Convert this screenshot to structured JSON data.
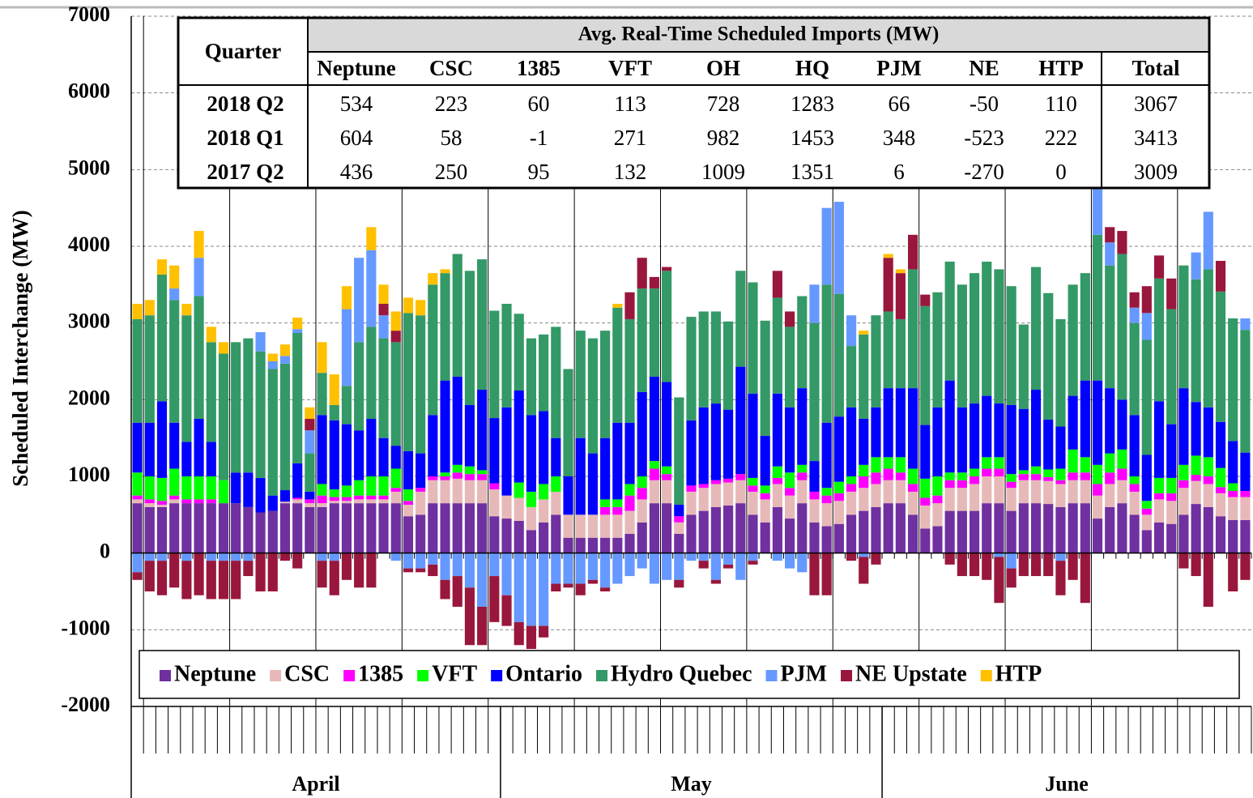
{
  "chart_data": {
    "type": "stacked-bar",
    "y_label": "Scheduled Interchange (MW)",
    "ylim": [
      -2000,
      7000
    ],
    "yticks": [
      -2000,
      -1000,
      0,
      1000,
      2000,
      3000,
      4000,
      5000,
      6000,
      7000
    ],
    "grid": true,
    "legend": "bottom",
    "categories": [
      "April",
      "April",
      "April",
      "April",
      "April",
      "April",
      "April",
      "April",
      "April",
      "April",
      "April",
      "April",
      "April",
      "April",
      "April",
      "April",
      "April",
      "April",
      "April",
      "April",
      "April",
      "April",
      "April",
      "April",
      "April",
      "April",
      "April",
      "April",
      "April",
      "April",
      "May",
      "May",
      "May",
      "May",
      "May",
      "May",
      "May",
      "May",
      "May",
      "May",
      "May",
      "May",
      "May",
      "May",
      "May",
      "May",
      "May",
      "May",
      "May",
      "May",
      "May",
      "May",
      "May",
      "May",
      "May",
      "May",
      "May",
      "May",
      "May",
      "May",
      "May",
      "June",
      "June",
      "June",
      "June",
      "June",
      "June",
      "June",
      "June",
      "June",
      "June",
      "June",
      "June",
      "June",
      "June",
      "June",
      "June",
      "June",
      "June",
      "June",
      "June",
      "June",
      "June",
      "June",
      "June",
      "June",
      "June",
      "June",
      "June",
      "June",
      "June"
    ],
    "series": [
      {
        "name": "Neptune",
        "color": "#7030a0",
        "values": [
          650,
          600,
          600,
          650,
          650,
          650,
          650,
          650,
          650,
          600,
          530,
          550,
          650,
          650,
          600,
          600,
          650,
          650,
          650,
          650,
          650,
          650,
          480,
          500,
          650,
          650,
          650,
          650,
          650,
          480,
          450,
          420,
          300,
          400,
          500,
          200,
          200,
          200,
          200,
          200,
          250,
          400,
          650,
          650,
          250,
          500,
          550,
          600,
          620,
          650,
          500,
          400,
          600,
          450,
          650,
          400,
          350,
          380,
          500,
          550,
          600,
          650,
          650,
          500,
          320,
          350,
          550,
          550,
          550,
          650,
          650,
          550,
          650,
          650,
          640,
          600,
          650,
          650,
          450,
          600,
          650,
          500,
          300,
          400,
          380,
          500,
          640,
          600,
          480,
          430,
          430
        ]
      },
      {
        "name": "CSC",
        "color": "#e6b9b8",
        "values": [
          50,
          50,
          30,
          50,
          0,
          0,
          0,
          0,
          0,
          0,
          0,
          0,
          20,
          50,
          50,
          50,
          30,
          30,
          50,
          50,
          50,
          150,
          150,
          300,
          300,
          300,
          320,
          300,
          300,
          350,
          300,
          300,
          300,
          300,
          300,
          300,
          300,
          300,
          300,
          300,
          300,
          300,
          300,
          300,
          150,
          300,
          300,
          300,
          300,
          300,
          300,
          300,
          300,
          300,
          300,
          300,
          300,
          300,
          300,
          300,
          300,
          300,
          300,
          300,
          300,
          300,
          300,
          300,
          350,
          350,
          350,
          300,
          300,
          300,
          300,
          300,
          300,
          300,
          300,
          300,
          300,
          300,
          200,
          300,
          300,
          350,
          300,
          300,
          300,
          300,
          300
        ]
      },
      {
        "name": "1385",
        "color": "#ff00ff",
        "values": [
          50,
          50,
          50,
          50,
          50,
          50,
          50,
          0,
          0,
          0,
          0,
          0,
          0,
          20,
          50,
          100,
          50,
          50,
          50,
          50,
          50,
          50,
          50,
          50,
          50,
          50,
          80,
          80,
          80,
          80,
          0,
          0,
          0,
          0,
          0,
          0,
          0,
          0,
          100,
          100,
          200,
          150,
          150,
          80,
          80,
          80,
          50,
          50,
          50,
          80,
          80,
          80,
          80,
          100,
          100,
          100,
          100,
          100,
          100,
          150,
          150,
          150,
          100,
          100,
          100,
          100,
          100,
          100,
          100,
          100,
          100,
          80,
          80,
          80,
          50,
          50,
          100,
          100,
          150,
          150,
          150,
          100,
          80,
          80,
          100,
          100,
          80,
          100,
          80,
          80,
          80
        ]
      },
      {
        "name": "VFT",
        "color": "#00ff00",
        "values": [
          300,
          300,
          300,
          350,
          300,
          300,
          300,
          300,
          0,
          0,
          0,
          0,
          0,
          0,
          0,
          150,
          100,
          150,
          200,
          250,
          250,
          250,
          150,
          0,
          0,
          50,
          100,
          100,
          50,
          0,
          0,
          200,
          200,
          200,
          200,
          0,
          0,
          0,
          100,
          100,
          150,
          150,
          100,
          100,
          0,
          0,
          0,
          0,
          0,
          0,
          100,
          100,
          150,
          200,
          100,
          0,
          100,
          150,
          100,
          150,
          200,
          150,
          200,
          200,
          250,
          250,
          100,
          100,
          100,
          150,
          150,
          100,
          50,
          100,
          100,
          150,
          300,
          200,
          250,
          250,
          250,
          100,
          100,
          200,
          200,
          200,
          250,
          250,
          250,
          100,
          0
        ]
      },
      {
        "name": "Ontario",
        "color": "#0000ff",
        "values": [
          650,
          700,
          1000,
          600,
          450,
          750,
          450,
          0,
          400,
          450,
          450,
          200,
          150,
          450,
          100,
          900,
          900,
          800,
          650,
          750,
          500,
          300,
          500,
          450,
          800,
          1200,
          1150,
          800,
          1050,
          850,
          1150,
          1200,
          1000,
          950,
          500,
          500,
          1000,
          800,
          800,
          1000,
          800,
          1100,
          1100,
          1100,
          150,
          850,
          1000,
          1000,
          900,
          1400,
          1100,
          650,
          950,
          850,
          1000,
          400,
          850,
          850,
          900,
          600,
          650,
          900,
          900,
          1050,
          700,
          900,
          1200,
          850,
          850,
          800,
          700,
          900,
          800,
          1000,
          650,
          550,
          700,
          1000,
          1100,
          850,
          650,
          800,
          600,
          1000,
          700,
          1000,
          700,
          650,
          600,
          550,
          500
        ]
      },
      {
        "name": "Hydro Quebec",
        "color": "#339966",
        "values": [
          1350,
          1400,
          1650,
          1600,
          1650,
          1600,
          1300,
          1650,
          1700,
          1750,
          1650,
          1650,
          1650,
          1700,
          500,
          550,
          200,
          500,
          1150,
          1200,
          1300,
          1350,
          1800,
          1800,
          1700,
          1400,
          1600,
          1750,
          1700,
          1400,
          1350,
          1000,
          1000,
          1000,
          1450,
          1400,
          1400,
          1500,
          1400,
          1500,
          1350,
          1350,
          1150,
          1450,
          1400,
          1350,
          1250,
          1200,
          1150,
          1250,
          1450,
          1500,
          1250,
          1050,
          1200,
          1800,
          1800,
          1600,
          800,
          1100,
          1200,
          1000,
          900,
          1550,
          1550,
          1500,
          1550,
          1600,
          1700,
          1750,
          1750,
          1550,
          1100,
          1600,
          1650,
          1400,
          1450,
          1400,
          1900,
          1600,
          1900,
          1200,
          1500,
          1600,
          1500,
          1600,
          1600,
          1800,
          1700,
          1600,
          1600
        ]
      },
      {
        "name": "PJM",
        "color": "#6699ff",
        "values": [
          -250,
          -100,
          -100,
          150,
          -100,
          500,
          -100,
          -100,
          -100,
          -100,
          250,
          100,
          100,
          50,
          300,
          -100,
          -100,
          1000,
          1100,
          1000,
          300,
          -100,
          -200,
          -200,
          -150,
          -350,
          -300,
          -450,
          -700,
          -300,
          -550,
          -900,
          -950,
          -950,
          -400,
          -400,
          -400,
          -350,
          -450,
          -400,
          -300,
          -200,
          -400,
          -350,
          -350,
          -100,
          -100,
          -350,
          -150,
          -350,
          -100,
          0,
          -100,
          -200,
          -250,
          500,
          1000,
          1200,
          400,
          -50,
          0,
          0,
          0,
          0,
          0,
          0,
          0,
          0,
          0,
          0,
          -50,
          -200,
          0,
          0,
          0,
          -100,
          0,
          0,
          800,
          300,
          0,
          200,
          350,
          0,
          0,
          0,
          350,
          750,
          0,
          0,
          150
        ]
      },
      {
        "name": "NE Upstate",
        "color": "#99173c",
        "values": [
          -100,
          -400,
          -450,
          -450,
          -500,
          -550,
          -500,
          -500,
          -500,
          -200,
          -500,
          -500,
          -100,
          -200,
          150,
          -350,
          -450,
          -350,
          -450,
          -450,
          150,
          150,
          -50,
          -50,
          -150,
          -250,
          -400,
          -750,
          -500,
          -600,
          -400,
          -300,
          -300,
          -150,
          -100,
          -50,
          -150,
          -50,
          -50,
          0,
          350,
          400,
          150,
          50,
          -100,
          0,
          -100,
          -50,
          -50,
          0,
          -50,
          0,
          350,
          200,
          0,
          -550,
          -550,
          0,
          -100,
          -350,
          -150,
          700,
          600,
          450,
          150,
          0,
          -150,
          -300,
          -300,
          -350,
          -600,
          -250,
          -300,
          -300,
          -300,
          -450,
          -350,
          -650,
          150,
          200,
          300,
          200,
          350,
          300,
          400,
          -200,
          -300,
          -700,
          400,
          -500,
          -350
        ]
      },
      {
        "name": "HTP",
        "color": "#ffc000",
        "values": [
          200,
          200,
          200,
          300,
          150,
          350,
          200,
          150,
          0,
          0,
          0,
          100,
          150,
          150,
          150,
          400,
          400,
          300,
          0,
          300,
          250,
          250,
          200,
          200,
          150,
          50,
          0,
          0,
          0,
          0,
          0,
          0,
          0,
          0,
          0,
          0,
          0,
          0,
          0,
          50,
          0,
          0,
          0,
          0,
          0,
          0,
          0,
          0,
          0,
          0,
          0,
          0,
          0,
          0,
          0,
          0,
          0,
          0,
          0,
          50,
          0,
          50,
          50,
          0,
          0,
          0,
          0,
          0,
          0,
          0,
          0,
          0,
          0,
          0,
          0,
          0,
          0,
          0,
          0,
          0,
          0,
          0,
          0,
          0,
          0,
          0,
          0,
          0,
          0,
          0,
          0
        ]
      }
    ],
    "table": {
      "title": "Avg. Real-Time Scheduled Imports (MW)",
      "corner": "Quarter",
      "columns": [
        "Neptune",
        "CSC",
        "1385",
        "VFT",
        "OH",
        "HQ",
        "PJM",
        "NE",
        "HTP",
        "Total"
      ],
      "rows": [
        {
          "label": "2018 Q2",
          "values": [
            534,
            223,
            60,
            113,
            728,
            1283,
            66,
            -50,
            110,
            3067
          ]
        },
        {
          "label": "2018 Q1",
          "values": [
            604,
            58,
            -1,
            271,
            982,
            1453,
            348,
            -523,
            222,
            3413
          ]
        },
        {
          "label": "2017 Q2",
          "values": [
            436,
            250,
            95,
            132,
            1009,
            1351,
            6,
            -270,
            0,
            3009
          ]
        }
      ]
    }
  }
}
